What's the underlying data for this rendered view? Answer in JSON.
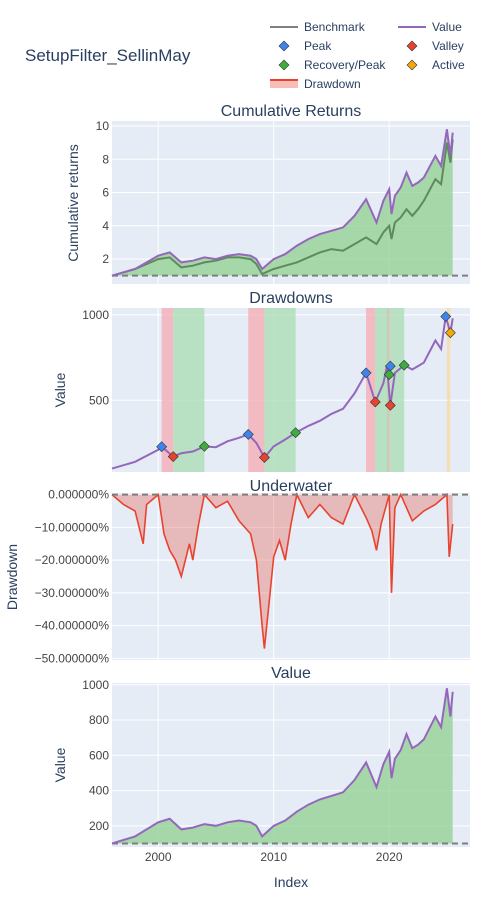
{
  "title": "SetupFilter_SellinMay",
  "colors": {
    "benchmark": "#7f7f7f",
    "value": "#9467bd",
    "peak": "#3e84ec",
    "valley": "#e8432f",
    "recovery": "#3dae3d",
    "active": "#f5a60a",
    "drawdown": "#e8432f",
    "plot_bg": "#e5ecf6",
    "positive_fill": "#8fd08f",
    "drawdown_zone": "#f5a9b0",
    "recovery_zone": "#a8dcb0",
    "active_zone": "#f7d9a0"
  },
  "legend": {
    "items": [
      {
        "label": "Benchmark",
        "marker": "line",
        "color": "#7f7f7f"
      },
      {
        "label": "Value",
        "marker": "line",
        "color": "#9467bd"
      },
      {
        "label": "Peak",
        "marker": "diamond",
        "color": "#3e84ec"
      },
      {
        "label": "Valley",
        "marker": "diamond",
        "color": "#e8432f"
      },
      {
        "label": "Recovery/Peak",
        "marker": "diamond",
        "color": "#3dae3d"
      },
      {
        "label": "Active",
        "marker": "diamond",
        "color": "#f5a60a"
      },
      {
        "label": "Drawdown",
        "marker": "band",
        "color": "#e8432f"
      }
    ]
  },
  "x_axis": {
    "title": "Index",
    "ticks": [
      2000,
      2010,
      2020
    ],
    "range": [
      1996,
      2027
    ]
  },
  "chart_data": [
    {
      "type": "area",
      "title": "Cumulative Returns",
      "ylabel": "Cumulative returns",
      "ylim": [
        0.5,
        10.3
      ],
      "yticks": [
        2,
        4,
        6,
        8,
        10
      ],
      "baseline": 1,
      "series": [
        {
          "name": "Value",
          "x": [
            1996,
            1998,
            2000,
            2001,
            2002,
            2003,
            2004,
            2005,
            2006,
            2007,
            2008,
            2008.5,
            2009,
            2010,
            2011,
            2012,
            2013,
            2014,
            2015,
            2016,
            2017,
            2018,
            2018.9,
            2019.5,
            2020,
            2020.2,
            2020.5,
            2021,
            2021.5,
            2022,
            2022.5,
            2023,
            2024,
            2024.5,
            2025,
            2025.3,
            2025.5
          ],
          "y": [
            1.0,
            1.4,
            2.2,
            2.4,
            1.8,
            1.9,
            2.1,
            2.0,
            2.2,
            2.3,
            2.2,
            2.0,
            1.4,
            2.0,
            2.3,
            2.8,
            3.2,
            3.5,
            3.7,
            3.9,
            4.6,
            5.6,
            4.2,
            5.5,
            6.2,
            4.7,
            5.8,
            6.3,
            7.2,
            6.4,
            6.6,
            6.9,
            8.2,
            7.6,
            9.8,
            8.2,
            9.6
          ]
        },
        {
          "name": "Benchmark",
          "x": [
            1996,
            1998,
            2000,
            2001,
            2002,
            2003,
            2004,
            2005,
            2006,
            2007,
            2008,
            2008.5,
            2009,
            2010,
            2011,
            2012,
            2013,
            2014,
            2015,
            2016,
            2017,
            2018,
            2018.9,
            2019.5,
            2020,
            2020.2,
            2020.5,
            2021,
            2021.5,
            2022,
            2022.5,
            2023,
            2024,
            2024.5,
            2025,
            2025.3,
            2025.5
          ],
          "y": [
            1.0,
            1.4,
            2.0,
            2.1,
            1.5,
            1.6,
            1.8,
            1.9,
            2.1,
            2.1,
            2.0,
            1.7,
            1.1,
            1.4,
            1.6,
            1.8,
            2.1,
            2.4,
            2.6,
            2.5,
            2.9,
            3.3,
            2.9,
            3.6,
            4.0,
            3.2,
            4.2,
            4.5,
            5.0,
            4.6,
            5.0,
            5.5,
            6.8,
            6.5,
            9.0,
            7.8,
            9.2
          ]
        }
      ]
    },
    {
      "type": "line",
      "title": "Drawdowns",
      "ylabel": "Value",
      "ylim": [
        80,
        1040
      ],
      "yticks": [
        500,
        1000
      ],
      "drawdown_zones": [
        [
          2000.3,
          2001.3
        ],
        [
          2007.8,
          2009.2
        ],
        [
          2018.0,
          2018.8
        ],
        [
          2019.8,
          2020.1
        ]
      ],
      "recovery_zones": [
        [
          2001.3,
          2004.0
        ],
        [
          2009.2,
          2011.9
        ],
        [
          2018.8,
          2020.0
        ],
        [
          2020.1,
          2021.3
        ]
      ],
      "active_zones": [
        [
          2025.0,
          2025.3
        ]
      ],
      "series": [
        {
          "name": "Value",
          "x": [
            1996,
            1998,
            2000,
            2000.3,
            2001.3,
            2002,
            2003,
            2004,
            2005,
            2006,
            2007,
            2007.8,
            2008.5,
            2009.2,
            2010,
            2011,
            2011.9,
            2013,
            2014,
            2015,
            2016,
            2017,
            2018,
            2018.8,
            2019.5,
            2019.8,
            2020.1,
            2020.5,
            2021.3,
            2022,
            2022.5,
            2023,
            2024,
            2024.5,
            2024.9,
            2025.3,
            2025.5
          ],
          "y": [
            100,
            140,
            210,
            228,
            170,
            190,
            200,
            230,
            225,
            260,
            280,
            300,
            250,
            165,
            230,
            270,
            310,
            350,
            380,
            420,
            450,
            540,
            660,
            490,
            600,
            700,
            470,
            660,
            705,
            680,
            700,
            720,
            850,
            800,
            990,
            895,
            980
          ]
        }
      ],
      "markers": {
        "peak": {
          "x": [
            2000.3,
            2007.8,
            2018.0,
            2020.1,
            2024.9
          ],
          "y": [
            228,
            300,
            660,
            700,
            990
          ]
        },
        "valley": {
          "x": [
            2001.3,
            2009.2,
            2018.8,
            2020.1
          ],
          "y": [
            170,
            165,
            490,
            470
          ]
        },
        "recovery": {
          "x": [
            2004.0,
            2011.9,
            2020.0,
            2021.3
          ],
          "y": [
            230,
            310,
            650,
            705
          ]
        },
        "active": {
          "x": [
            2025.3
          ],
          "y": [
            895
          ]
        }
      }
    },
    {
      "type": "area",
      "title": "Underwater",
      "ylabel": "Drawdown",
      "ylim": [
        -0.505,
        0.005
      ],
      "yticks": [
        0,
        -0.1,
        -0.2,
        -0.3,
        -0.4,
        -0.5
      ],
      "ytick_labels": [
        "0.000000%",
        "−10.000000%",
        "−20.000000%",
        "−30.000000%",
        "−40.000000%",
        "−50.000000%"
      ],
      "series": [
        {
          "name": "Drawdown",
          "x": [
            1996,
            1997,
            1998,
            1998.7,
            1999,
            2000,
            2000.5,
            2001,
            2001.5,
            2002,
            2002.7,
            2003,
            2003.5,
            2004,
            2005,
            2006,
            2007,
            2008,
            2008.5,
            2009,
            2009.2,
            2009.6,
            2010,
            2010.5,
            2011,
            2011.5,
            2012,
            2013,
            2014,
            2015,
            2016,
            2017,
            2018,
            2018.5,
            2018.9,
            2019.3,
            2020,
            2020.2,
            2020.5,
            2021,
            2022,
            2023,
            2024,
            2025,
            2025.2,
            2025.5
          ],
          "y": [
            0,
            -0.03,
            -0.05,
            -0.15,
            -0.03,
            0,
            -0.12,
            -0.17,
            -0.2,
            -0.25,
            -0.15,
            -0.2,
            -0.09,
            0,
            -0.04,
            -0.02,
            -0.08,
            -0.12,
            -0.2,
            -0.4,
            -0.47,
            -0.33,
            -0.19,
            -0.14,
            -0.2,
            -0.09,
            0,
            -0.07,
            -0.03,
            -0.07,
            -0.09,
            0,
            -0.07,
            -0.11,
            -0.17,
            -0.09,
            0,
            -0.3,
            -0.04,
            0,
            -0.08,
            -0.05,
            -0.03,
            0,
            -0.19,
            -0.09
          ]
        }
      ]
    },
    {
      "type": "area",
      "title": "Value",
      "ylabel": "Value",
      "ylim": [
        80,
        1010
      ],
      "yticks": [
        200,
        400,
        600,
        800,
        1000
      ],
      "baseline": 100,
      "series": [
        {
          "name": "Value",
          "x": [
            1996,
            1998,
            2000,
            2001,
            2002,
            2003,
            2004,
            2005,
            2006,
            2007,
            2008,
            2008.5,
            2009,
            2010,
            2011,
            2012,
            2013,
            2014,
            2015,
            2016,
            2017,
            2018,
            2018.9,
            2019.5,
            2020,
            2020.2,
            2020.5,
            2021,
            2021.5,
            2022,
            2022.5,
            2023,
            2024,
            2024.5,
            2025,
            2025.3,
            2025.5
          ],
          "y": [
            100,
            140,
            220,
            240,
            180,
            190,
            210,
            200,
            220,
            230,
            220,
            200,
            140,
            200,
            230,
            280,
            320,
            350,
            370,
            390,
            460,
            560,
            420,
            550,
            620,
            470,
            580,
            630,
            720,
            640,
            660,
            690,
            820,
            760,
            980,
            820,
            960
          ]
        }
      ]
    }
  ]
}
